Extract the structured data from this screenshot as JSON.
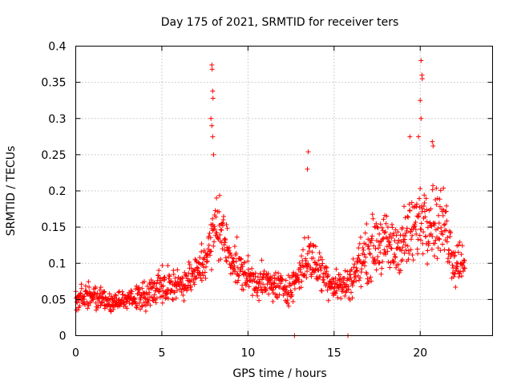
{
  "chart_data": {
    "type": "scatter",
    "title": "Day 175 of 2021, SRMTID for receiver ters",
    "xlabel": "GPS time / hours",
    "ylabel": "SRMTID / TECUs",
    "xlim": [
      0,
      24.2
    ],
    "ylim": [
      0,
      0.4
    ],
    "x_ticks": [
      0,
      5,
      10,
      15,
      20
    ],
    "y_ticks": [
      0,
      0.05,
      0.1,
      0.15,
      0.2,
      0.25,
      0.3,
      0.35,
      0.4
    ],
    "x_tick_labels": [
      "0",
      "5",
      "10",
      "15",
      "20"
    ],
    "y_tick_labels": [
      "0",
      "0.05",
      "0.1",
      "0.15",
      "0.2",
      "0.25",
      "0.3",
      "0.35",
      "0.4"
    ],
    "grid": true,
    "marker": "+",
    "color": "#ff0000",
    "series": [
      {
        "name": "SRMTID",
        "outliers": [
          {
            "x": 7.9,
            "y": 0.374
          },
          {
            "x": 7.92,
            "y": 0.368
          },
          {
            "x": 7.95,
            "y": 0.338
          },
          {
            "x": 7.97,
            "y": 0.328
          },
          {
            "x": 7.85,
            "y": 0.3
          },
          {
            "x": 7.9,
            "y": 0.29
          },
          {
            "x": 7.95,
            "y": 0.275
          },
          {
            "x": 8.0,
            "y": 0.25
          },
          {
            "x": 13.5,
            "y": 0.254
          },
          {
            "x": 13.45,
            "y": 0.23
          },
          {
            "x": 20.05,
            "y": 0.38
          },
          {
            "x": 20.1,
            "y": 0.36
          },
          {
            "x": 20.12,
            "y": 0.355
          },
          {
            "x": 20.0,
            "y": 0.325
          },
          {
            "x": 20.05,
            "y": 0.3
          },
          {
            "x": 19.9,
            "y": 0.275
          },
          {
            "x": 20.7,
            "y": 0.268
          },
          {
            "x": 20.75,
            "y": 0.262
          },
          {
            "x": 19.4,
            "y": 0.275
          },
          {
            "x": 12.7,
            "y": 0.0
          },
          {
            "x": 15.8,
            "y": 0.0
          }
        ],
        "envelope": [
          {
            "x": 0.0,
            "y": 0.05,
            "spread": 0.015
          },
          {
            "x": 1.0,
            "y": 0.055,
            "spread": 0.018
          },
          {
            "x": 2.0,
            "y": 0.045,
            "spread": 0.012
          },
          {
            "x": 3.0,
            "y": 0.05,
            "spread": 0.013
          },
          {
            "x": 4.0,
            "y": 0.055,
            "spread": 0.018
          },
          {
            "x": 5.0,
            "y": 0.07,
            "spread": 0.02
          },
          {
            "x": 6.0,
            "y": 0.07,
            "spread": 0.018
          },
          {
            "x": 7.0,
            "y": 0.085,
            "spread": 0.022
          },
          {
            "x": 7.8,
            "y": 0.12,
            "spread": 0.035
          },
          {
            "x": 8.2,
            "y": 0.16,
            "spread": 0.045
          },
          {
            "x": 8.8,
            "y": 0.12,
            "spread": 0.03
          },
          {
            "x": 9.5,
            "y": 0.09,
            "spread": 0.025
          },
          {
            "x": 10.5,
            "y": 0.075,
            "spread": 0.02
          },
          {
            "x": 11.5,
            "y": 0.07,
            "spread": 0.02
          },
          {
            "x": 12.5,
            "y": 0.065,
            "spread": 0.018
          },
          {
            "x": 13.5,
            "y": 0.11,
            "spread": 0.03
          },
          {
            "x": 14.2,
            "y": 0.09,
            "spread": 0.025
          },
          {
            "x": 15.0,
            "y": 0.07,
            "spread": 0.02
          },
          {
            "x": 15.8,
            "y": 0.07,
            "spread": 0.02
          },
          {
            "x": 16.5,
            "y": 0.1,
            "spread": 0.03
          },
          {
            "x": 17.5,
            "y": 0.13,
            "spread": 0.04
          },
          {
            "x": 18.5,
            "y": 0.12,
            "spread": 0.035
          },
          {
            "x": 19.5,
            "y": 0.14,
            "spread": 0.045
          },
          {
            "x": 20.2,
            "y": 0.17,
            "spread": 0.05
          },
          {
            "x": 20.8,
            "y": 0.16,
            "spread": 0.045
          },
          {
            "x": 21.5,
            "y": 0.15,
            "spread": 0.045
          },
          {
            "x": 22.0,
            "y": 0.1,
            "spread": 0.03
          },
          {
            "x": 22.6,
            "y": 0.11,
            "spread": 0.03
          }
        ]
      }
    ]
  }
}
